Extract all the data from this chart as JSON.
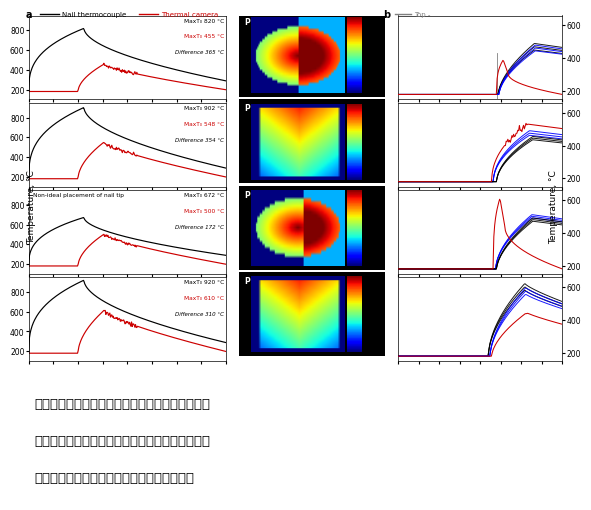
{
  "title_a": "a",
  "title_b": "b",
  "legend_left_black": "Nail thermocouple",
  "legend_left_red": "Thermal camera",
  "legend_right": "Top -",
  "ylabel_left": "Temperature, °C",
  "ylabel_right": "Temperature, °C",
  "background_color": "#ffffff",
  "panels_left": [
    {
      "max_t_black": "MaxT₀ 820 °C",
      "max_t_red": "MaxT₀ 455 °C",
      "diff": "Difference 365 °C",
      "ylim": [
        100,
        950
      ],
      "yticks": [
        200,
        400,
        600,
        800
      ],
      "non_ideal": false,
      "black_peak": 820,
      "red_peak": 455
    },
    {
      "max_t_black": "MaxT₀ 902 °C",
      "max_t_red": "MaxT₀ 548 °C",
      "diff": "Difference 354 °C",
      "ylim": [
        100,
        950
      ],
      "yticks": [
        200,
        400,
        600,
        800
      ],
      "non_ideal": false,
      "black_peak": 902,
      "red_peak": 548
    },
    {
      "max_t_black": "MaxT₀ 672 °C",
      "max_t_red": "MaxT₀ 500 °C",
      "diff": "Difference 172 °C",
      "ylim": [
        100,
        950
      ],
      "yticks": [
        200,
        400,
        600,
        800
      ],
      "non_ideal": true,
      "black_peak": 672,
      "red_peak": 500
    },
    {
      "max_t_black": "MaxT₀ 920 °C",
      "max_t_red": "MaxT₀ 610 °C",
      "diff": "Difference 310 °C",
      "ylim": [
        100,
        950
      ],
      "yticks": [
        200,
        400,
        600,
        800
      ],
      "non_ideal": false,
      "black_peak": 920,
      "red_peak": 610
    }
  ],
  "panels_right": [
    {
      "ylim": [
        150,
        660
      ],
      "yticks": [
        200,
        400,
        600
      ],
      "red_peak": 390,
      "black_peaks": [
        490,
        470,
        450
      ],
      "blue_peaks": [
        480,
        462,
        445
      ],
      "panel_type": 1
    },
    {
      "ylim": [
        150,
        660
      ],
      "yticks": [
        200,
        400,
        600
      ],
      "red_peak": 530,
      "black_peaks": [
        455,
        445,
        435
      ],
      "blue_peaks": [
        490,
        475,
        462
      ],
      "panel_type": 2
    },
    {
      "ylim": [
        150,
        660
      ],
      "yticks": [
        200,
        400,
        600
      ],
      "red_peak": 610,
      "black_peaks": [
        490,
        480,
        470
      ],
      "blue_peaks": [
        510,
        500,
        490
      ],
      "panel_type": 3
    },
    {
      "ylim": [
        150,
        660
      ],
      "yticks": [
        200,
        400,
        600
      ],
      "red_peak": 450,
      "black_peaks": [
        620,
        600,
        580
      ],
      "blue_peaks": [
        600,
        580,
        560
      ],
      "panel_type": 4
    }
  ],
  "text_lines": [
    "电芯的一项重要测试就是穿刺试验，监控电芯在遇",
    "到异物穿刺时温度的变化，图中展示的是圆柱电芯",
    "在不同位置角度穿刺时，电池的温度变化情况"
  ]
}
